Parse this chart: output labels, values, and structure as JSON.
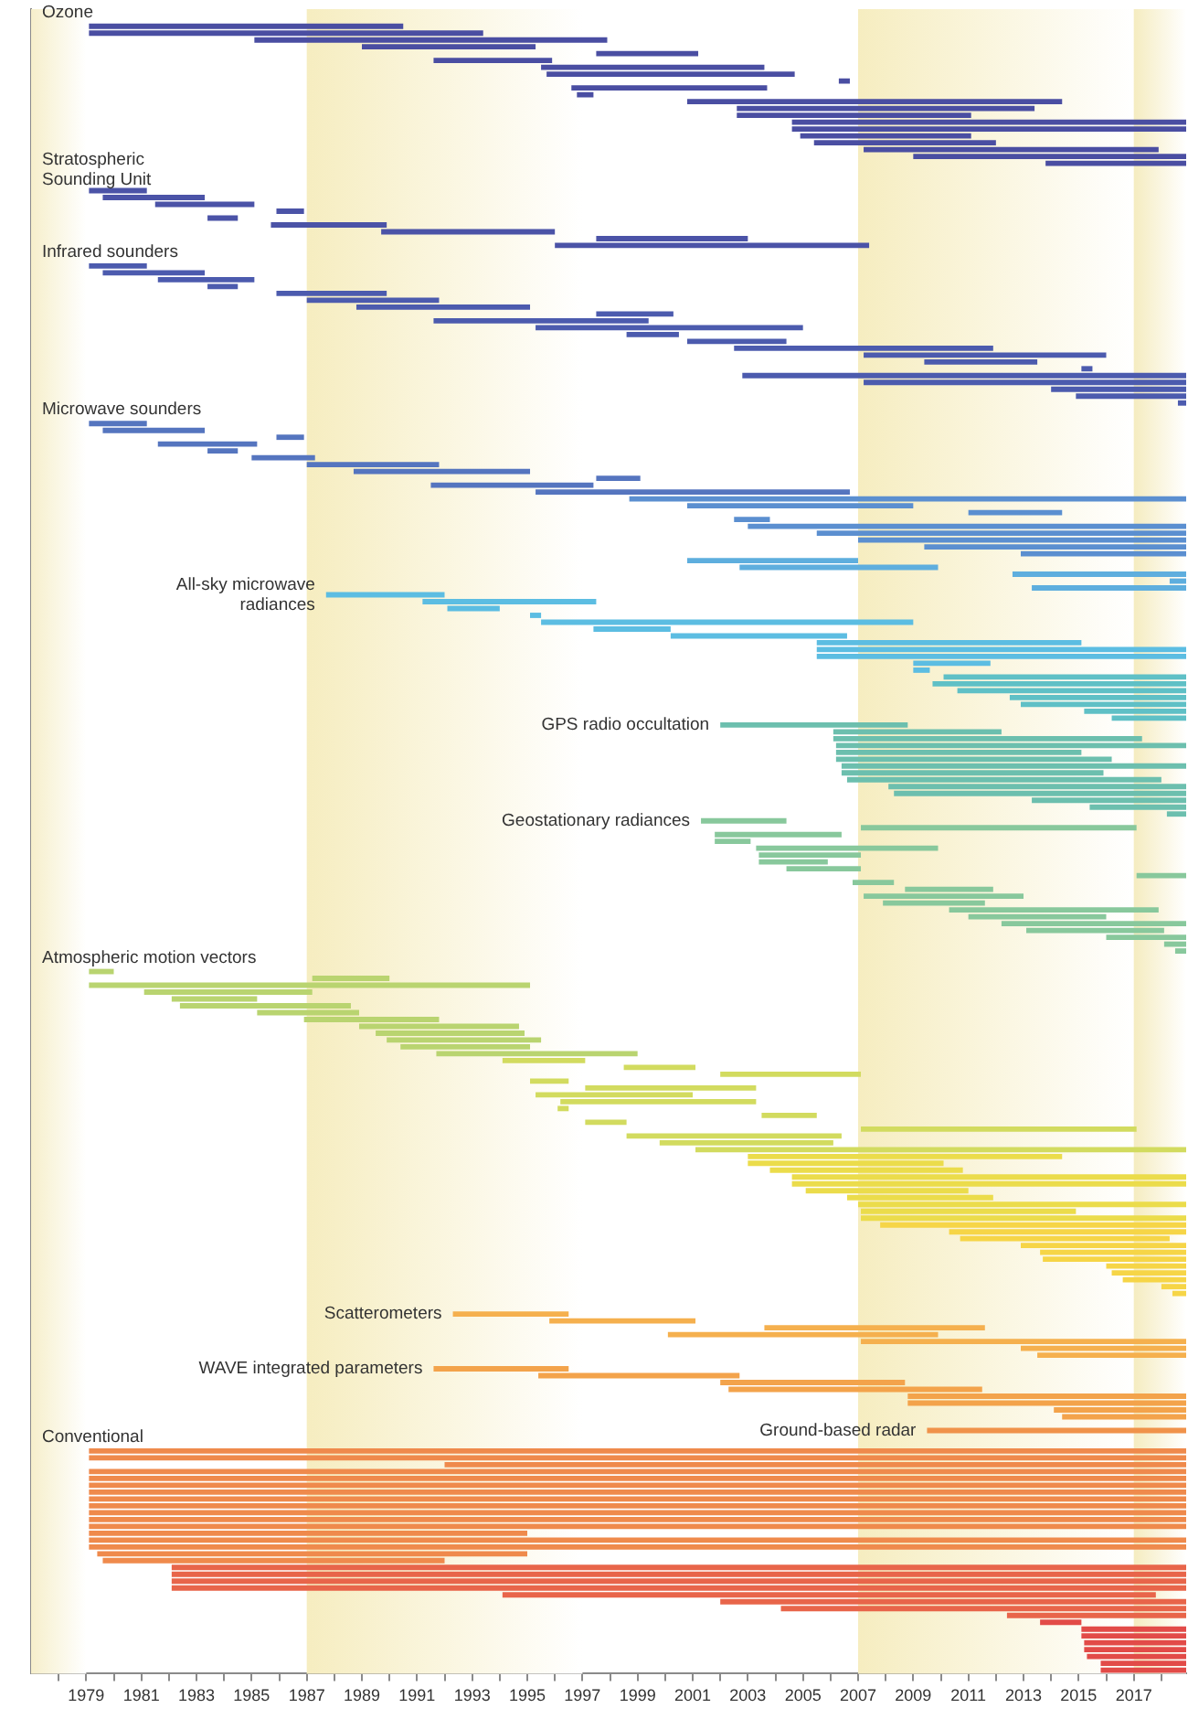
{
  "chart_data": {
    "type": "bar",
    "orientation": "horizontal",
    "categories": [
      "Ozone",
      null,
      null,
      null,
      null,
      null,
      null,
      null,
      null,
      null,
      null,
      null,
      null,
      null,
      null,
      null,
      null,
      null,
      null,
      null,
      null,
      null,
      null,
      "Stratospheric\nSounding Unit",
      null,
      null,
      null,
      null,
      null,
      null,
      null,
      null,
      null,
      null,
      null,
      "Infrared sounders",
      null,
      null,
      null,
      null,
      null,
      null,
      null,
      null,
      null,
      null,
      null,
      null,
      null,
      null,
      null,
      null,
      null,
      null,
      null,
      null,
      null,
      null,
      "Microwave sounders",
      null,
      null,
      null,
      null,
      null,
      null,
      null,
      null,
      null,
      null,
      null,
      null,
      null,
      null,
      null,
      null,
      null,
      null,
      null,
      null,
      null,
      null,
      null,
      null,
      null,
      null,
      "All-sky microwave\nradiances",
      null,
      null,
      null,
      null,
      null,
      null,
      null,
      null,
      null,
      null,
      null,
      null,
      null,
      null,
      null,
      null,
      null,
      null,
      "GPS radio occultation",
      null,
      null,
      null,
      null,
      null,
      null,
      null,
      null,
      null,
      null,
      null,
      null,
      null,
      "Geostationary radiances",
      null,
      null,
      null,
      null,
      null,
      null,
      null,
      null,
      null,
      null,
      null,
      null,
      null,
      null,
      null,
      null,
      null,
      null,
      null,
      "Atmospheric motion vectors",
      null,
      null,
      null,
      null,
      null,
      null,
      null,
      null,
      null,
      null,
      null,
      null,
      null,
      null,
      null,
      null,
      null,
      null,
      null,
      null,
      null,
      null,
      null,
      null,
      null,
      null,
      null,
      null,
      null,
      null,
      null,
      null,
      null,
      null,
      null,
      null,
      null,
      null,
      null,
      null,
      null,
      null,
      null,
      null,
      null,
      null,
      null,
      null,
      null,
      null,
      null,
      "Scatterometers",
      null,
      null,
      null,
      null,
      null,
      null,
      null,
      "WAVE integrated parameters",
      null,
      null,
      null,
      null,
      null,
      null,
      null,
      null,
      "Ground-based radar",
      "Conventional",
      null,
      null,
      null,
      null,
      null,
      null,
      null,
      null,
      null,
      null,
      null,
      null,
      null,
      null,
      null,
      null,
      null,
      null,
      null,
      null,
      null,
      null,
      null,
      null,
      null,
      null,
      null,
      null,
      null,
      null,
      null,
      null,
      null,
      null
    ],
    "base": [
      null,
      null,
      1979.1,
      1979.1,
      1985.1,
      1989.0,
      1997.5,
      1991.6,
      1995.5,
      1995.7,
      2006.3,
      1996.6,
      1996.8,
      2000.8,
      2002.6,
      2002.6,
      2004.6,
      2004.6,
      2004.9,
      2005.4,
      2007.2,
      2009.0,
      2013.8,
      null,
      null,
      null,
      1979.1,
      1979.6,
      1981.5,
      1985.9,
      1983.4,
      1985.7,
      1989.7,
      1997.5,
      1996.0,
      null,
      null,
      1979.1,
      1979.6,
      1981.6,
      1983.4,
      1985.9,
      1987.0,
      1988.8,
      1997.5,
      1991.6,
      1995.3,
      1998.6,
      2000.8,
      2002.5,
      2007.2,
      2009.4,
      2015.1,
      2002.8,
      2007.2,
      2014.0,
      2014.9,
      2018.6,
      null,
      null,
      1979.1,
      1979.6,
      1985.9,
      1981.6,
      1983.4,
      1985.0,
      1987.0,
      1988.7,
      1997.5,
      1991.5,
      1995.3,
      1998.7,
      2000.8,
      2011.0,
      2002.5,
      2003.0,
      2005.5,
      2007.0,
      2009.4,
      2012.9,
      2000.8,
      2002.7,
      2012.6,
      2018.3,
      2013.3,
      1987.7,
      1991.2,
      1992.1,
      1995.1,
      1995.5,
      1997.4,
      2000.2,
      2005.5,
      2005.5,
      2005.5,
      2009.0,
      2009.0,
      2010.1,
      2009.7,
      2010.6,
      2012.5,
      2012.9,
      2015.2,
      2016.2,
      2002.0,
      2006.1,
      2006.1,
      2006.2,
      2006.2,
      2006.2,
      2006.4,
      2006.4,
      2006.6,
      2008.1,
      2008.3,
      2013.3,
      2015.4,
      2018.2,
      2001.3,
      2007.1,
      2001.8,
      2001.8,
      2003.3,
      2003.4,
      2003.4,
      2004.4,
      2017.1,
      2006.8,
      2008.7,
      2007.2,
      2007.9,
      2010.3,
      2011.0,
      2012.2,
      2013.1,
      2016.0,
      2018.1,
      2018.5,
      null,
      null,
      1979.1,
      1987.2,
      1979.1,
      1981.1,
      1982.1,
      1982.4,
      1985.2,
      1986.9,
      1988.9,
      1989.5,
      1989.9,
      1990.4,
      1991.7,
      1994.1,
      1998.5,
      2002.0,
      1995.1,
      1997.1,
      1995.3,
      1996.2,
      1996.1,
      2003.5,
      1997.1,
      2007.1,
      1998.6,
      1999.8,
      2001.1,
      2003.0,
      2003.0,
      2003.8,
      2004.6,
      2004.6,
      2005.1,
      2006.6,
      2007.0,
      2007.1,
      2007.1,
      2007.8,
      2010.3,
      2010.7,
      2012.9,
      2013.6,
      2013.7,
      2016.0,
      2016.2,
      2016.6,
      2018.0,
      2018.4,
      null,
      null,
      1992.3,
      1995.8,
      2003.6,
      2000.1,
      2007.1,
      2012.9,
      2013.5,
      null,
      1991.6,
      1995.4,
      2002.0,
      2002.3,
      2008.8,
      2008.8,
      2014.1,
      2014.4,
      null,
      2009.5,
      null,
      null,
      1979.1,
      1979.1,
      1992.0,
      1979.1,
      1979.1,
      1979.1,
      1979.1,
      1979.1,
      1979.1,
      1979.1,
      1979.1,
      1979.1,
      1979.1,
      1979.1,
      1979.1,
      1979.4,
      1979.6,
      1982.1,
      1982.1,
      1982.1,
      1982.1,
      1994.1,
      2002.0,
      2004.2,
      2012.4,
      2013.6,
      2015.1,
      2015.1,
      2015.2,
      2015.2,
      2015.3,
      2015.8,
      2015.8
    ],
    "values": [
      null,
      null,
      11.4,
      14.3,
      12.8,
      6.3,
      3.7,
      4.3,
      8.1,
      9.0,
      0.4,
      7.1,
      0.6,
      13.6,
      10.8,
      8.5,
      14.3,
      14.3,
      6.2,
      6.6,
      10.7,
      9.9,
      5.1,
      null,
      null,
      null,
      2.1,
      3.7,
      3.6,
      1.0,
      1.1,
      4.2,
      6.3,
      5.5,
      11.4,
      null,
      null,
      2.1,
      3.7,
      3.5,
      1.1,
      4.0,
      4.8,
      6.3,
      2.8,
      7.8,
      9.7,
      1.9,
      3.6,
      9.4,
      8.8,
      4.1,
      0.4,
      16.1,
      11.7,
      4.9,
      4.0,
      0.3,
      null,
      null,
      2.1,
      3.7,
      1.0,
      3.6,
      1.1,
      2.3,
      4.8,
      6.4,
      1.6,
      5.9,
      11.4,
      20.2,
      8.2,
      3.4,
      1.3,
      15.9,
      13.4,
      11.9,
      9.5,
      6.0,
      6.2,
      7.2,
      6.3,
      0.6,
      5.6,
      4.3,
      6.3,
      1.9,
      0.4,
      13.5,
      2.8,
      6.4,
      9.6,
      13.4,
      13.4,
      2.8,
      0.6,
      8.8,
      9.2,
      8.3,
      6.4,
      6.0,
      3.7,
      2.7,
      6.8,
      6.1,
      11.2,
      12.7,
      8.9,
      10.0,
      12.5,
      9.5,
      11.4,
      10.8,
      10.6,
      5.6,
      3.5,
      0.7,
      3.1,
      10.0,
      4.6,
      1.3,
      6.6,
      3.7,
      2.5,
      2.7,
      1.8,
      1.5,
      3.2,
      5.8,
      3.7,
      7.6,
      5.0,
      6.7,
      5.0,
      2.9,
      0.8,
      0.4,
      null,
      null,
      0.9,
      2.8,
      16.0,
      6.1,
      3.1,
      6.2,
      3.7,
      4.9,
      5.8,
      5.4,
      5.6,
      4.7,
      7.3,
      3.0,
      2.6,
      5.1,
      1.4,
      6.2,
      5.7,
      7.1,
      0.4,
      2.0,
      1.5,
      10.0,
      7.8,
      6.3,
      17.8,
      11.4,
      7.1,
      7.0,
      14.3,
      14.3,
      5.9,
      5.3,
      11.9,
      7.8,
      11.8,
      11.1,
      8.6,
      7.6,
      6.0,
      5.3,
      5.2,
      2.9,
      2.7,
      2.3,
      0.9,
      0.5,
      null,
      null,
      4.2,
      5.3,
      8.0,
      9.8,
      11.8,
      6.0,
      5.4,
      null,
      4.9,
      7.3,
      6.7,
      9.2,
      10.1,
      10.1,
      4.8,
      4.5,
      null,
      9.4,
      null,
      null,
      39.8,
      39.8,
      26.9,
      39.8,
      39.8,
      39.8,
      39.8,
      39.8,
      39.8,
      39.8,
      39.8,
      39.8,
      15.9,
      39.8,
      39.8,
      15.6,
      12.4,
      36.8,
      36.8,
      36.8,
      36.8,
      23.7,
      16.9,
      14.7,
      6.5,
      1.5,
      3.8,
      3.8,
      3.7,
      3.7,
      3.6,
      3.1,
      3.1
    ],
    "colors": [
      null,
      null,
      "#4a4ea2",
      "#4a4ea2",
      "#4a4ea2",
      "#4a4ea2",
      "#4a4ea2",
      "#4a4ea2",
      "#4a4ea2",
      "#4a4ea2",
      "#4a4ea2",
      "#4a4ea2",
      "#4a4ea2",
      "#4a4ea2",
      "#4a4ea2",
      "#4a4ea2",
      "#4a4ea2",
      "#4a4ea2",
      "#4a4ea2",
      "#4a4ea2",
      "#4a4ea2",
      "#4a4ea2",
      "#4a4ea2",
      null,
      null,
      null,
      "#4b53a7",
      "#4b53a7",
      "#4b53a7",
      "#4b53a7",
      "#4b53a7",
      "#4b53a7",
      "#4b53a7",
      "#4b53a7",
      "#4b53a7",
      null,
      null,
      "#4c5bae",
      "#4c5bae",
      "#4c5bae",
      "#4c5bae",
      "#4c5bae",
      "#4c5bae",
      "#4c5bae",
      "#4c5bae",
      "#4c5bae",
      "#4c5bae",
      "#4c5bae",
      "#4c5bae",
      "#4c5bae",
      "#4c5bae",
      "#4c5bae",
      "#4c5bae",
      "#4c5bae",
      "#4c5bae",
      "#4c5bae",
      "#4c5bae",
      "#4c5bae",
      null,
      null,
      "#5575bf",
      "#5575bf",
      "#5575bf",
      "#5575bf",
      "#5575bf",
      "#5575bf",
      "#5575bf",
      "#5575bf",
      "#5575bf",
      "#5575bf",
      "#5575bf",
      "#5b8fd0",
      "#5b8fd0",
      "#5b8fd0",
      "#5b8fd0",
      "#5b8fd0",
      "#5b8fd0",
      "#5b8fd0",
      "#5b8fd0",
      "#5b8fd0",
      "#5eaede",
      "#5eaede",
      "#5eaede",
      "#5eaede",
      "#5eaede",
      "#5cbde2",
      "#5cbde2",
      "#5cbde2",
      "#5cbde2",
      "#5cbde2",
      "#5cbde2",
      "#5cbde2",
      "#5cbde2",
      "#5cbde2",
      "#5cbde2",
      "#5cbde2",
      "#5cbde2",
      "#5fc0c6",
      "#5fc0c6",
      "#5fc0c6",
      "#5fc0c6",
      "#5fc0c6",
      "#5fc0c6",
      "#5fc0c6",
      "#6cbfae",
      "#6cbfae",
      "#6cbfae",
      "#6cbfae",
      "#6cbfae",
      "#6cbfae",
      "#6cbfae",
      "#6cbfae",
      "#6cbfae",
      "#6cbfae",
      "#6cbfae",
      "#6cbfae",
      "#6cbfae",
      "#6cbfae",
      "#88c89c",
      "#88c89c",
      "#88c89c",
      "#88c89c",
      "#88c89c",
      "#88c89c",
      "#88c89c",
      "#88c89c",
      "#88c89c",
      "#88c89c",
      "#88c89c",
      "#88c89c",
      "#88c89c",
      "#88c89c",
      "#88c89c",
      "#88c89c",
      "#88c89c",
      "#88c89c",
      "#88c89c",
      "#88c89c",
      null,
      null,
      "#b9d470",
      "#b9d470",
      "#b9d470",
      "#b9d470",
      "#b9d470",
      "#b9d470",
      "#b9d470",
      "#b9d470",
      "#b9d470",
      "#b9d470",
      "#b9d470",
      "#b9d470",
      "#b9d470",
      "#d2db5f",
      "#d2db5f",
      "#d2db5f",
      "#d2db5f",
      "#d2db5f",
      "#d2db5f",
      "#d2db5f",
      "#d2db5f",
      "#d2db5f",
      "#d2db5f",
      "#d2db5f",
      "#d2db5f",
      "#d2db5f",
      "#d2db5f",
      "#ebdc4b",
      "#ebdc4b",
      "#ebdc4b",
      "#ebdc4b",
      "#ebdc4b",
      "#ebdc4b",
      "#ebdc4b",
      "#ebdc4b",
      "#ebdc4b",
      "#ebdc4b",
      "#f6d547",
      "#f6d547",
      "#f6d547",
      "#f6d547",
      "#f6d547",
      "#f6d547",
      "#f6d547",
      "#f6d547",
      "#f6d547",
      "#f6d547",
      "#f6d547",
      null,
      null,
      "#f5b04e",
      "#f5b04e",
      "#f5b04e",
      "#f5b04e",
      "#f5b04e",
      "#f5b04e",
      "#f5b04e",
      null,
      "#f3a34b",
      "#f3a34b",
      "#f3a34b",
      "#f3a34b",
      "#f3a34b",
      "#f3a34b",
      "#f3a34b",
      "#f3a34b",
      null,
      "#f0924a",
      null,
      null,
      "#ef8a4c",
      "#ef8a4c",
      "#ef8a4c",
      "#ef8a4c",
      "#ef8a4c",
      "#ef8a4c",
      "#ef8a4c",
      "#ef8a4c",
      "#ef8a4c",
      "#ef8a4c",
      "#ef8a4c",
      "#ef8a4c",
      "#ef8a4c",
      "#ef8a4c",
      "#ef8a4c",
      "#ef8a4c",
      "#ef8a4c",
      "#e8654a",
      "#e8654a",
      "#e8654a",
      "#e8654a",
      "#e8654a",
      "#e8654a",
      "#e8654a",
      "#e8654a",
      "#e24b48",
      "#e24b48",
      "#e24b48",
      "#e24b48",
      "#e24b48",
      "#e24b48",
      "#e24b48",
      "#e24b48"
    ],
    "xlim": [
      1977,
      2018.9
    ],
    "xticks": [
      {
        "value": 1978,
        "label": null
      },
      1979,
      {
        "value": 1980,
        "label": null
      },
      1981,
      {
        "value": 1982,
        "label": null
      },
      1983,
      {
        "value": 1984,
        "label": null
      },
      1985,
      {
        "value": 1986,
        "label": null
      },
      1987,
      {
        "value": 1988,
        "label": null
      },
      1989,
      {
        "value": 1990,
        "label": null
      },
      1991,
      {
        "value": 1992,
        "label": null
      },
      1993,
      {
        "value": 1994,
        "label": null
      },
      1995,
      {
        "value": 1996,
        "label": null
      },
      1997,
      {
        "value": 1998,
        "label": null
      },
      1999,
      {
        "value": 2000,
        "label": null
      },
      2001,
      {
        "value": 2002,
        "label": null
      },
      2003,
      {
        "value": 2004,
        "label": null
      },
      2005,
      {
        "value": 2006,
        "label": null
      },
      2007,
      {
        "value": 2008,
        "label": null
      },
      2009,
      {
        "value": 2010,
        "label": null
      },
      2011,
      {
        "value": 2012,
        "label": null
      },
      2013,
      {
        "value": 2014,
        "label": null
      },
      2015,
      {
        "value": 2016,
        "label": null
      },
      2017,
      {
        "value": 2018,
        "label": null
      }
    ],
    "bands": [
      {
        "axis": "x",
        "from": 1977,
        "to": 1979,
        "color": "#f6efcb"
      },
      {
        "axis": "x",
        "from": 1987,
        "to": 1997,
        "color": "#f6edc0"
      },
      {
        "axis": "x",
        "from": 2007,
        "to": 2017,
        "color": "#f6edc0"
      },
      {
        "axis": "x",
        "from": 2017,
        "to": 2018.9,
        "color": "#f5ecc0"
      }
    ]
  }
}
